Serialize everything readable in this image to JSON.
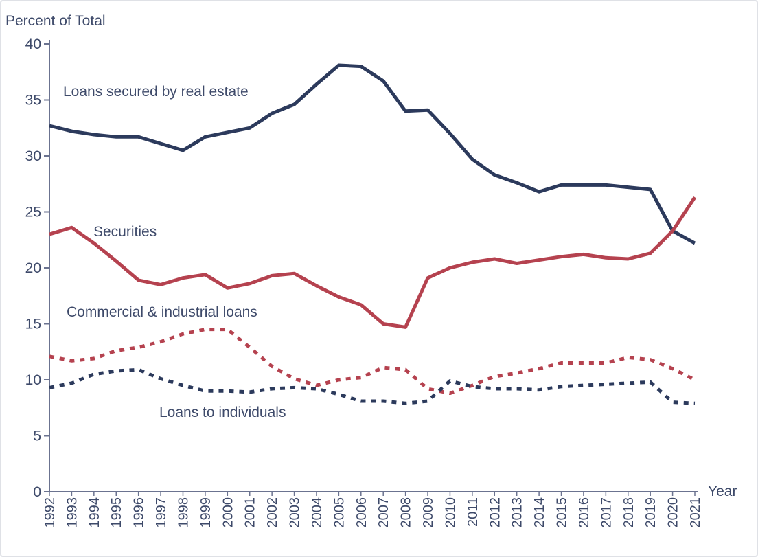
{
  "chart_data": {
    "type": "line",
    "title": "",
    "ylabel": "Percent of Total",
    "xlabel": "Year",
    "ylim": [
      0,
      40
    ],
    "yticks": [
      0,
      5,
      10,
      15,
      20,
      25,
      30,
      35,
      40
    ],
    "x": [
      1992,
      1993,
      1994,
      1995,
      1996,
      1997,
      1998,
      1999,
      2000,
      2001,
      2002,
      2003,
      2004,
      2005,
      2006,
      2007,
      2008,
      2009,
      2010,
      2011,
      2012,
      2013,
      2014,
      2015,
      2016,
      2017,
      2018,
      2019,
      2020,
      2021
    ],
    "grid": false,
    "legend": "inline labels",
    "series": [
      {
        "name": "Loans secured by real estate",
        "color": "#2c3a5c",
        "style": "solid",
        "values": [
          32.7,
          32.2,
          31.9,
          31.7,
          31.7,
          31.1,
          30.5,
          31.7,
          32.1,
          32.5,
          33.8,
          34.6,
          36.4,
          38.1,
          38.0,
          36.7,
          34.0,
          34.1,
          32.0,
          29.7,
          28.3,
          27.6,
          26.8,
          27.4,
          27.4,
          27.4,
          27.2,
          27.0,
          23.3,
          22.2
        ]
      },
      {
        "name": "Securities",
        "color": "#b5424f",
        "style": "solid",
        "values": [
          23.0,
          23.6,
          22.2,
          20.6,
          18.9,
          18.5,
          19.1,
          19.4,
          18.2,
          18.6,
          19.3,
          19.5,
          18.4,
          17.4,
          16.7,
          15.0,
          14.7,
          19.1,
          20.0,
          20.5,
          20.8,
          20.4,
          20.7,
          21.0,
          21.2,
          20.9,
          20.8,
          21.3,
          23.3,
          26.3
        ]
      },
      {
        "name": "Commercial & industrial loans",
        "color": "#b5424f",
        "style": "dotted",
        "values": [
          12.1,
          11.7,
          11.9,
          12.6,
          12.9,
          13.4,
          14.1,
          14.5,
          14.5,
          12.9,
          11.2,
          10.1,
          9.5,
          10.0,
          10.2,
          11.1,
          10.9,
          9.2,
          8.8,
          9.5,
          10.3,
          10.6,
          11.0,
          11.5,
          11.5,
          11.5,
          12.0,
          11.8,
          11.0,
          10.0
        ]
      },
      {
        "name": "Loans to individuals",
        "color": "#2c3a5c",
        "style": "dotted",
        "values": [
          9.3,
          9.7,
          10.5,
          10.8,
          10.9,
          10.1,
          9.5,
          9.0,
          9.0,
          8.9,
          9.2,
          9.3,
          9.2,
          8.7,
          8.1,
          8.1,
          7.9,
          8.1,
          9.9,
          9.4,
          9.2,
          9.2,
          9.1,
          9.4,
          9.5,
          9.6,
          9.7,
          9.8,
          8.0,
          7.9
        ]
      }
    ]
  }
}
